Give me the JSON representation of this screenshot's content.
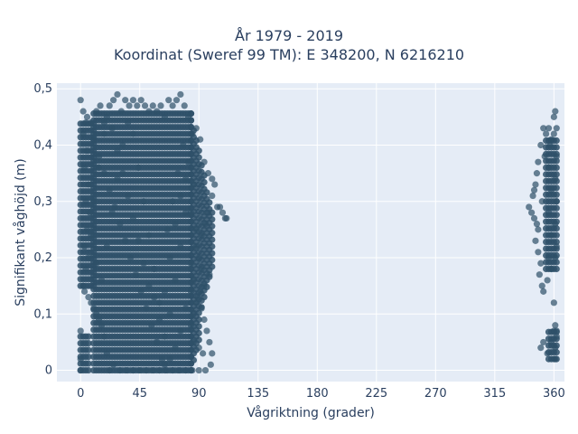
{
  "colors": {
    "plot_bg": "#e5ecf6",
    "grid": "#ffffff",
    "marker": "#2e5068",
    "text": "#2a3f5f"
  },
  "chart_data": {
    "type": "scatter",
    "title": "År 1979 - 2019",
    "subtitle": "Koordinat (Sweref 99 TM): E 348200, N 6216210",
    "xlabel": "Vågriktning (grader)",
    "ylabel": "Signifikant våghöjd (m)",
    "xlim": [
      -18,
      368
    ],
    "ylim": [
      -0.02,
      0.51
    ],
    "x_ticks": [
      0,
      45,
      90,
      135,
      180,
      225,
      270,
      315,
      360
    ],
    "x_tick_labels": [
      "0",
      "45",
      "90",
      "135",
      "180",
      "225",
      "270",
      "315",
      "360"
    ],
    "y_ticks": [
      0,
      0.1,
      0.2,
      0.3,
      0.4,
      0.5
    ],
    "y_tick_labels": [
      "0",
      "0,1",
      "0,2",
      "0,3",
      "0,4",
      "0,5"
    ],
    "grid": true,
    "legend": "none",
    "marker_opacity": 0.7,
    "series": [
      {
        "values_description_free": true,
        "points": [
          [
            0,
            0.48
          ],
          [
            2,
            0.46
          ],
          [
            5,
            0.45
          ],
          [
            8,
            0.44
          ],
          [
            12,
            0.46
          ],
          [
            15,
            0.47
          ],
          [
            18,
            0.44
          ],
          [
            22,
            0.47
          ],
          [
            25,
            0.48
          ],
          [
            28,
            0.49
          ],
          [
            31,
            0.46
          ],
          [
            34,
            0.48
          ],
          [
            37,
            0.47
          ],
          [
            40,
            0.48
          ],
          [
            43,
            0.47
          ],
          [
            46,
            0.48
          ],
          [
            49,
            0.47
          ],
          [
            52,
            0.46
          ],
          [
            55,
            0.47
          ],
          [
            58,
            0.46
          ],
          [
            61,
            0.47
          ],
          [
            64,
            0.45
          ],
          [
            67,
            0.48
          ],
          [
            70,
            0.47
          ],
          [
            73,
            0.48
          ],
          [
            76,
            0.49
          ],
          [
            79,
            0.47
          ],
          [
            82,
            0.45
          ],
          [
            85,
            0.42
          ],
          [
            88,
            0.43
          ],
          [
            91,
            0.41
          ],
          [
            94,
            0.37
          ],
          [
            97,
            0.35
          ],
          [
            100,
            0.34
          ],
          [
            102,
            0.33
          ],
          [
            104,
            0.29
          ],
          [
            106,
            0.29
          ],
          [
            108,
            0.28
          ],
          [
            110,
            0.27
          ],
          [
            111,
            0.27
          ],
          [
            0,
            0.07
          ],
          [
            0,
            0.02
          ],
          [
            0,
            0.0
          ],
          [
            3,
            0.14
          ],
          [
            6,
            0.13
          ],
          [
            8,
            0.12
          ],
          [
            10,
            0.11
          ],
          [
            12,
            0.1
          ],
          [
            14,
            0.09
          ],
          [
            16,
            0.08
          ],
          [
            18,
            0.06
          ],
          [
            20,
            0.03
          ],
          [
            22,
            0.0
          ],
          [
            25,
            0.01
          ],
          [
            30,
            0.0
          ],
          [
            35,
            0.0
          ],
          [
            40,
            0.0
          ],
          [
            45,
            0.0
          ],
          [
            50,
            0.0
          ],
          [
            55,
            0.0
          ],
          [
            60,
            0.0
          ],
          [
            65,
            0.0
          ],
          [
            70,
            0.0
          ],
          [
            75,
            0.0
          ],
          [
            80,
            0.0
          ],
          [
            85,
            0.0
          ],
          [
            90,
            0.0
          ],
          [
            95,
            0.0
          ],
          [
            99,
            0.01
          ],
          [
            100,
            0.03
          ],
          [
            98,
            0.05
          ],
          [
            96,
            0.07
          ],
          [
            94,
            0.09
          ],
          [
            92,
            0.11
          ],
          [
            89,
            0.13
          ],
          [
            86,
            0.16
          ],
          [
            84,
            0.19
          ],
          [
            88,
            0.22
          ],
          [
            92,
            0.24
          ],
          [
            95,
            0.26
          ],
          [
            97,
            0.28
          ],
          [
            100,
            0.31
          ],
          [
            98,
            0.17
          ],
          [
            94,
            0.15
          ],
          [
            91,
            0.14
          ],
          [
            88,
            0.12
          ],
          [
            86,
            0.1
          ],
          [
            84,
            0.08
          ],
          [
            86,
            0.05
          ],
          [
            90,
            0.04
          ],
          [
            93,
            0.03
          ],
          [
            2,
            0.15
          ],
          [
            4,
            0.18
          ],
          [
            6,
            0.2
          ],
          [
            3,
            0.22
          ],
          [
            5,
            0.25
          ],
          [
            7,
            0.28
          ],
          [
            4,
            0.3
          ],
          [
            6,
            0.33
          ],
          [
            3,
            0.36
          ],
          [
            5,
            0.39
          ],
          [
            2,
            0.42
          ],
          [
            4,
            0.44
          ],
          [
            10,
            0.41
          ],
          [
            14,
            0.38
          ],
          [
            18,
            0.35
          ],
          [
            22,
            0.32
          ],
          [
            26,
            0.29
          ],
          [
            30,
            0.26
          ],
          [
            34,
            0.23
          ],
          [
            38,
            0.2
          ],
          [
            42,
            0.17
          ],
          [
            46,
            0.14
          ],
          [
            50,
            0.11
          ],
          [
            54,
            0.08
          ],
          [
            58,
            0.05
          ],
          [
            62,
            0.02
          ],
          [
            66,
            0.25
          ],
          [
            70,
            0.3
          ],
          [
            74,
            0.35
          ],
          [
            78,
            0.4
          ],
          [
            82,
            0.37
          ],
          [
            86,
            0.33
          ],
          [
            80,
            0.28
          ],
          [
            76,
            0.22
          ],
          [
            72,
            0.16
          ],
          [
            68,
            0.1
          ],
          [
            64,
            0.06
          ],
          [
            60,
            0.12
          ],
          [
            56,
            0.18
          ],
          [
            52,
            0.24
          ],
          [
            48,
            0.3
          ],
          [
            44,
            0.36
          ],
          [
            40,
            0.42
          ],
          [
            36,
            0.44
          ],
          [
            32,
            0.4
          ],
          [
            28,
            0.34
          ],
          [
            24,
            0.28
          ],
          [
            20,
            0.22
          ],
          [
            16,
            0.16
          ],
          [
            12,
            0.19
          ],
          [
            8,
            0.24
          ],
          [
            10,
            0.3
          ],
          [
            14,
            0.36
          ],
          [
            18,
            0.42
          ],
          [
            20,
            0.45
          ],
          [
            24,
            0.43
          ],
          [
            28,
            0.39
          ],
          [
            32,
            0.35
          ],
          [
            36,
            0.31
          ],
          [
            40,
            0.27
          ],
          [
            44,
            0.23
          ],
          [
            48,
            0.19
          ],
          [
            52,
            0.15
          ],
          [
            56,
            0.13
          ],
          [
            60,
            0.09
          ],
          [
            64,
            0.14
          ],
          [
            68,
            0.2
          ],
          [
            72,
            0.26
          ],
          [
            76,
            0.31
          ],
          [
            80,
            0.34
          ],
          [
            84,
            0.28
          ],
          [
            88,
            0.25
          ],
          [
            90,
            0.2
          ],
          [
            92,
            0.18
          ],
          [
            84,
            0.14
          ],
          [
            80,
            0.11
          ],
          [
            76,
            0.07
          ],
          [
            72,
            0.04
          ],
          [
            68,
            0.02
          ],
          [
            64,
            0.01
          ],
          [
            352,
            0.43
          ],
          [
            354,
            0.42
          ],
          [
            356,
            0.43
          ],
          [
            358,
            0.41
          ],
          [
            360,
            0.42
          ],
          [
            362,
            0.43
          ],
          [
            361,
            0.46
          ],
          [
            360,
            0.45
          ],
          [
            350,
            0.4
          ],
          [
            348,
            0.37
          ],
          [
            347,
            0.35
          ],
          [
            346,
            0.33
          ],
          [
            345,
            0.32
          ],
          [
            344,
            0.31
          ],
          [
            341,
            0.29
          ],
          [
            343,
            0.28
          ],
          [
            345,
            0.27
          ],
          [
            347,
            0.26
          ],
          [
            348,
            0.25
          ],
          [
            346,
            0.23
          ],
          [
            348,
            0.21
          ],
          [
            350,
            0.19
          ],
          [
            349,
            0.17
          ],
          [
            351,
            0.15
          ],
          [
            352,
            0.14
          ],
          [
            355,
            0.16
          ],
          [
            358,
            0.18
          ],
          [
            361,
            0.2
          ],
          [
            362,
            0.22
          ],
          [
            361,
            0.26
          ],
          [
            362,
            0.3
          ],
          [
            361,
            0.34
          ],
          [
            362,
            0.38
          ],
          [
            360,
            0.12
          ],
          [
            361,
            0.08
          ],
          [
            362,
            0.06
          ],
          [
            361,
            0.04
          ],
          [
            361,
            0.02
          ],
          [
            352,
            0.05
          ],
          [
            350,
            0.04
          ],
          [
            355,
            0.03
          ],
          [
            358,
            0.05
          ],
          [
            360,
            0.07
          ],
          [
            362,
            0.07
          ],
          [
            356,
            0.36
          ],
          [
            358,
            0.32
          ],
          [
            356,
            0.28
          ],
          [
            358,
            0.24
          ],
          [
            356,
            0.2
          ],
          [
            357,
            0.4
          ],
          [
            353,
            0.38
          ],
          [
            351,
            0.3
          ]
        ]
      }
    ]
  }
}
